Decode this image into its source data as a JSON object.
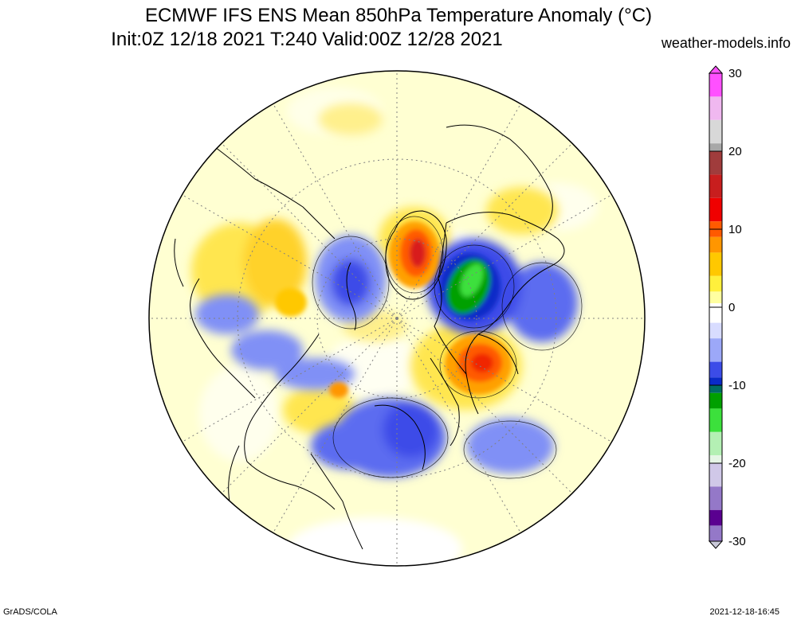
{
  "header": {
    "title_line1": "ECMWF IFS ENS Mean 850hPa Temperature Anomaly (°C)",
    "title_line2": "Init:0Z 12/18 2021  T:240 Valid:00Z 12/28 2021",
    "source": "weather-models.info"
  },
  "footer": {
    "left": "GrADS/COLA",
    "right": "2021-12-18-16:45"
  },
  "map": {
    "projection": "north-polar-stereographic",
    "ocean_color": "#ffffd2",
    "coastline_color": "#000000",
    "regions": [
      {
        "name": "warm-greenland-anomaly",
        "peak": 14,
        "color": "#e83a00"
      },
      {
        "name": "cold-canada-anomaly",
        "peak": -12,
        "color": "#18a028"
      },
      {
        "name": "warm-alaska-pacific-anomaly",
        "peak": 12,
        "color": "#ff5a00"
      },
      {
        "name": "cold-siberia-anomaly",
        "peak": -9,
        "color": "#2c3ce6"
      },
      {
        "name": "cold-kazakhstan-anomaly",
        "peak": -7,
        "color": "#4a5af0"
      },
      {
        "name": "cold-scandinavia-anomaly",
        "peak": -7,
        "color": "#4a5af0"
      },
      {
        "name": "cold-north-pacific-anomaly",
        "peak": -6,
        "color": "#6070f4"
      },
      {
        "name": "cold-north-atlantic-anomaly",
        "peak": -6,
        "color": "#6070f4"
      }
    ]
  },
  "colorbar": {
    "tick_labels": [
      "30",
      "20",
      "10",
      "0",
      "-10",
      "-20",
      "-30"
    ],
    "stops": [
      {
        "value": 30,
        "color": "#ff50ff"
      },
      {
        "value": 27,
        "color": "#f0b8f0"
      },
      {
        "value": 24,
        "color": "#d8d8d8"
      },
      {
        "value": 21,
        "color": "#a8a8a8"
      },
      {
        "value": 20,
        "color": "#a03c3c"
      },
      {
        "value": 17,
        "color": "#c81e1e"
      },
      {
        "value": 14,
        "color": "#f00000"
      },
      {
        "value": 11,
        "color": "#ff5a00"
      },
      {
        "value": 9,
        "color": "#ff9600"
      },
      {
        "value": 7,
        "color": "#ffc800"
      },
      {
        "value": 4,
        "color": "#fff03c"
      },
      {
        "value": 2,
        "color": "#ffffa0"
      },
      {
        "value": 0.5,
        "color": "#ffffff"
      },
      {
        "value": -0.5,
        "color": "#ffffff"
      },
      {
        "value": -2,
        "color": "#d8dcff"
      },
      {
        "value": -4,
        "color": "#9ca8f8"
      },
      {
        "value": -7,
        "color": "#3c4ce8"
      },
      {
        "value": -9,
        "color": "#0a2ac8"
      },
      {
        "value": -10,
        "color": "#006c64"
      },
      {
        "value": -11,
        "color": "#00a000"
      },
      {
        "value": -13,
        "color": "#3ce03c"
      },
      {
        "value": -16,
        "color": "#b4f0b4"
      },
      {
        "value": -19,
        "color": "#e6f6e6"
      },
      {
        "value": -20,
        "color": "#d0c8e8"
      },
      {
        "value": -23,
        "color": "#9478c8"
      },
      {
        "value": -26,
        "color": "#5a0090"
      },
      {
        "value": -28,
        "color": "#9478c8"
      },
      {
        "value": -30,
        "color": "#c8c8d8"
      }
    ]
  }
}
